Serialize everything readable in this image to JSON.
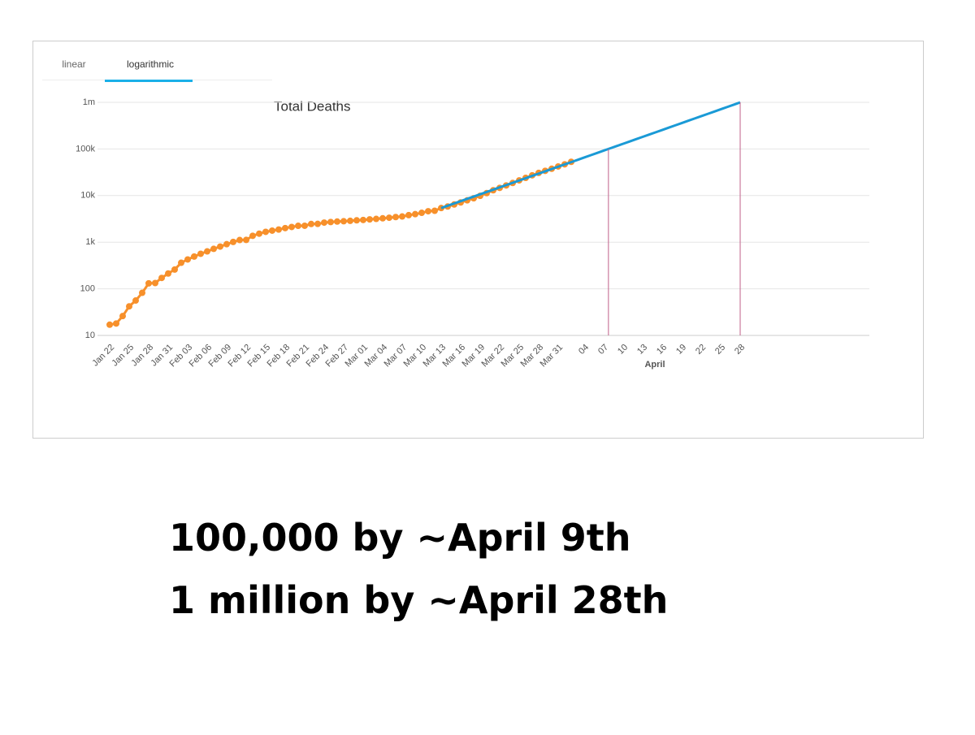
{
  "tabs": [
    "linear",
    "logarithmic"
  ],
  "chart_data": {
    "type": "line",
    "title": "Total Deaths",
    "log_y": true,
    "grid": true,
    "categories": [
      "Jan 22",
      null,
      null,
      "Jan 25",
      null,
      null,
      "Jan 28",
      null,
      null,
      "Jan 31",
      null,
      null,
      "Feb 03",
      null,
      null,
      "Feb 06",
      null,
      null,
      "Feb 09",
      null,
      null,
      "Feb 12",
      null,
      null,
      "Feb 15",
      null,
      null,
      "Feb 18",
      null,
      null,
      "Feb 21",
      null,
      null,
      "Feb 24",
      null,
      null,
      "Feb 27",
      null,
      null,
      "Mar 01",
      null,
      null,
      "Mar 04",
      null,
      null,
      "Mar 07",
      null,
      null,
      "Mar 10",
      null,
      null,
      "Mar 13",
      null,
      null,
      "Mar 16",
      null,
      null,
      "Mar 19",
      null,
      null,
      "Mar 22",
      null,
      null,
      "Mar 25",
      null,
      null,
      "Mar 28",
      null,
      null,
      "Mar 31",
      null,
      null,
      null,
      "04",
      null,
      null,
      "07",
      null,
      null,
      "10",
      null,
      null,
      "13",
      null,
      null,
      "16",
      null,
      null,
      "19",
      null,
      null,
      "22",
      null,
      null,
      "25",
      null,
      null,
      "28"
    ],
    "x_group_label": "April",
    "series": [
      {
        "color": "#f7902b",
        "markers": true,
        "values": [
          17,
          18,
          26,
          42,
          56,
          82,
          131,
          133,
          171,
          213,
          259,
          362,
          426,
          492,
          564,
          634,
          719,
          806,
          906,
          1013,
          1113,
          1118,
          1371,
          1523,
          1666,
          1770,
          1868,
          2007,
          2122,
          2247,
          2251,
          2458,
          2469,
          2629,
          2708,
          2770,
          2814,
          2872,
          2941,
          2996,
          3085,
          3160,
          3254,
          3348,
          3460,
          3558,
          3803,
          3996,
          4262,
          4615,
          4720,
          5404,
          5819,
          6440,
          7126,
          7905,
          8733,
          9867,
          11299,
          12973,
          14623,
          16497,
          18615,
          21181,
          23970,
          27198,
          30652,
          33925,
          37582,
          42107,
          46809,
          52983,
          null,
          null,
          null,
          null,
          null,
          null,
          null,
          null,
          null,
          null,
          null,
          null,
          null,
          null,
          null,
          null,
          null,
          null,
          null,
          null,
          null,
          null,
          null,
          null,
          null,
          null
        ]
      },
      {
        "color": "#1a9ad6",
        "markers": false,
        "values": [
          null,
          null,
          null,
          null,
          null,
          null,
          null,
          null,
          null,
          null,
          null,
          null,
          null,
          null,
          null,
          null,
          null,
          null,
          null,
          null,
          null,
          null,
          null,
          null,
          null,
          null,
          null,
          null,
          null,
          null,
          null,
          null,
          null,
          null,
          null,
          null,
          null,
          null,
          null,
          null,
          null,
          null,
          null,
          null,
          null,
          null,
          null,
          null,
          null,
          null,
          null,
          5400,
          6049,
          6775,
          7589,
          8500,
          9521,
          10665,
          11946,
          13381,
          14988,
          16788,
          18804,
          21063,
          23593,
          26426,
          29600,
          33155,
          37137,
          41598,
          46594,
          52190,
          58458,
          65479,
          73344,
          82153,
          92020,
          103072,
          115452,
          129319,
          144851,
          162248,
          181735,
          203562,
          228011,
          255397,
          286071,
          320430,
          358915,
          402023,
          450307,
          504390,
          564970,
          632824,
          708830,
          793964,
          889323,
          996141
        ]
      }
    ],
    "reference_lines": [
      {
        "value": 100000,
        "color": "#c0608a"
      },
      {
        "value": 1000000,
        "color": "#c0608a"
      }
    ],
    "ylim": [
      10,
      1000000
    ],
    "yticks": [
      10,
      100,
      {
        "value": 1000,
        "label": "1k"
      },
      {
        "value": 10000,
        "label": "10k"
      },
      {
        "value": 100000,
        "label": "100k"
      },
      {
        "value": 1000000,
        "label": "1m"
      }
    ]
  },
  "caption": [
    "100,000 by ~April 9th",
    "1 million by ~April 28th"
  ]
}
